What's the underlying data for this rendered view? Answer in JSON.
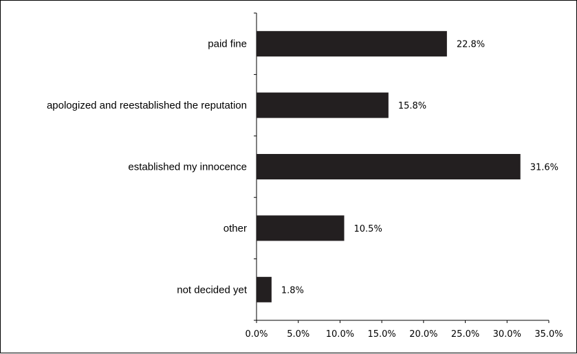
{
  "chart_data": {
    "type": "bar",
    "orientation": "horizontal",
    "title": "",
    "xlabel": "",
    "ylabel": "",
    "categories": [
      "paid fine",
      "apologized and reestablished the reputation",
      "established my innocence",
      "other",
      "not decided yet"
    ],
    "values": [
      22.8,
      15.8,
      31.6,
      10.5,
      1.8
    ],
    "value_labels": [
      "22.8%",
      "15.8%",
      "31.6%",
      "10.5%",
      "1.8%"
    ],
    "xlim": [
      0,
      35
    ],
    "x_ticks": [
      0,
      5,
      10,
      15,
      20,
      25,
      30,
      35
    ],
    "x_tick_labels": [
      "0.0%",
      "5.0%",
      "10.0%",
      "15.0%",
      "20.0%",
      "25.0%",
      "30.0%",
      "35.0%"
    ],
    "bar_color": "#231f20",
    "grid": false,
    "legend": "none"
  }
}
